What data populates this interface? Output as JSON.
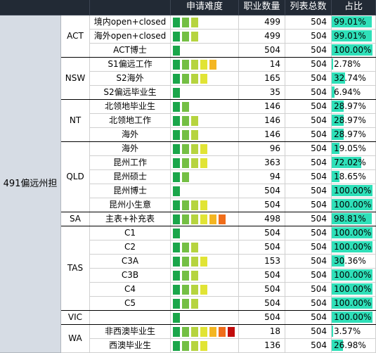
{
  "headers": {
    "difficulty": "申请难度",
    "jobs": "职业数量",
    "total": "列表总数",
    "ratio": "占比"
  },
  "category_label": "491偏远州担",
  "difficulty_colors": [
    "#1aa64a",
    "#74bf44",
    "#b6d43f",
    "#e1e435",
    "#f4b622",
    "#f06d1a",
    "#c20d0d"
  ],
  "ratio_bar_color": "#2fe0b9",
  "groups": [
    {
      "state": "ACT",
      "rows": [
        {
          "name": "境内open+closed",
          "level": 3,
          "jobs": "499",
          "total": "504",
          "ratio": "99.01%",
          "fraction": 0.9901
        },
        {
          "name": "海外open+closed",
          "level": 3,
          "jobs": "499",
          "total": "504",
          "ratio": "99.01%",
          "fraction": 0.9901
        },
        {
          "name": "ACT博士",
          "level": 1,
          "jobs": "504",
          "total": "504",
          "ratio": "100.00%",
          "fraction": 1.0
        }
      ]
    },
    {
      "state": "NSW",
      "rows": [
        {
          "name": "S1偏远工作",
          "level": 5,
          "jobs": "14",
          "total": "504",
          "ratio": "2.78%",
          "fraction": 0.0278
        },
        {
          "name": "S2海外",
          "level": 4,
          "jobs": "165",
          "total": "504",
          "ratio": "32.74%",
          "fraction": 0.3274
        },
        {
          "name": "S2偏远毕业生",
          "level": 1,
          "jobs": "35",
          "total": "504",
          "ratio": "6.94%",
          "fraction": 0.0694
        }
      ]
    },
    {
      "state": "NT",
      "rows": [
        {
          "name": "北领地毕业生",
          "level": 2,
          "jobs": "146",
          "total": "504",
          "ratio": "28.97%",
          "fraction": 0.2897
        },
        {
          "name": "北领地工作",
          "level": 3,
          "jobs": "146",
          "total": "504",
          "ratio": "28.97%",
          "fraction": 0.2897
        },
        {
          "name": "海外",
          "level": 3,
          "jobs": "146",
          "total": "504",
          "ratio": "28.97%",
          "fraction": 0.2897
        }
      ]
    },
    {
      "state": "QLD",
      "rows": [
        {
          "name": "海外",
          "level": 4,
          "jobs": "96",
          "total": "504",
          "ratio": "19.05%",
          "fraction": 0.1905
        },
        {
          "name": "昆州工作",
          "level": 4,
          "jobs": "363",
          "total": "504",
          "ratio": "72.02%",
          "fraction": 0.7202
        },
        {
          "name": "昆州硕士",
          "level": 2,
          "jobs": "94",
          "total": "504",
          "ratio": "18.65%",
          "fraction": 0.1865
        },
        {
          "name": "昆州博士",
          "level": 1,
          "jobs": "504",
          "total": "504",
          "ratio": "100.00%",
          "fraction": 1.0
        },
        {
          "name": "昆州小生意",
          "level": 4,
          "jobs": "504",
          "total": "504",
          "ratio": "100.00%",
          "fraction": 1.0
        }
      ]
    },
    {
      "state": "SA",
      "rows": [
        {
          "name": "主表+补充表",
          "level": 6,
          "jobs": "498",
          "total": "504",
          "ratio": "98.81%",
          "fraction": 0.9881
        }
      ]
    },
    {
      "state": "TAS",
      "rows": [
        {
          "name": "C1",
          "level": 1,
          "jobs": "504",
          "total": "504",
          "ratio": "100.00%",
          "fraction": 1.0
        },
        {
          "name": "C2",
          "level": 3,
          "jobs": "504",
          "total": "504",
          "ratio": "100.00%",
          "fraction": 1.0
        },
        {
          "name": "C3A",
          "level": 4,
          "jobs": "153",
          "total": "504",
          "ratio": "30.36%",
          "fraction": 0.3036
        },
        {
          "name": "C3B",
          "level": 3,
          "jobs": "504",
          "total": "504",
          "ratio": "100.00%",
          "fraction": 1.0
        },
        {
          "name": "C4",
          "level": 4,
          "jobs": "504",
          "total": "504",
          "ratio": "100.00%",
          "fraction": 1.0
        },
        {
          "name": "C5",
          "level": 3,
          "jobs": "504",
          "total": "504",
          "ratio": "100.00%",
          "fraction": 1.0
        }
      ]
    },
    {
      "state": "VIC",
      "rows": [
        {
          "name": "",
          "level": 1,
          "jobs": "504",
          "total": "504",
          "ratio": "100.00%",
          "fraction": 1.0
        }
      ]
    },
    {
      "state": "WA",
      "rows": [
        {
          "name": "非西澳毕业生",
          "level": 7,
          "jobs": "18",
          "total": "504",
          "ratio": "3.57%",
          "fraction": 0.0357
        },
        {
          "name": "西澳毕业生",
          "level": 4,
          "jobs": "136",
          "total": "504",
          "ratio": "26.98%",
          "fraction": 0.2698
        }
      ]
    }
  ]
}
